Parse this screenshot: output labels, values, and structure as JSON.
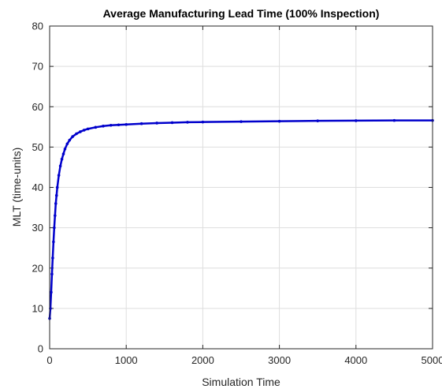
{
  "chart_data": {
    "type": "line",
    "title": "Average Manufacturing Lead Time (100% Inspection)",
    "xlabel": "Simulation Time",
    "ylabel": "MLT (time-units)",
    "xlim": [
      0,
      5000
    ],
    "ylim": [
      0,
      80
    ],
    "xticks": [
      0,
      1000,
      2000,
      3000,
      4000,
      5000
    ],
    "yticks": [
      0,
      10,
      20,
      30,
      40,
      50,
      60,
      70,
      80
    ],
    "grid": true,
    "legend": "none",
    "line_color": "#0000cc",
    "marker": "dot",
    "series": [
      {
        "x": [
          0,
          10,
          20,
          30,
          40,
          50,
          60,
          70,
          80,
          90,
          100,
          120,
          140,
          160,
          180,
          200,
          230,
          260,
          300,
          350,
          400,
          450,
          500,
          600,
          700,
          800,
          900,
          1000,
          1200,
          1400,
          1600,
          1800,
          2000,
          2500,
          3000,
          3500,
          4000,
          4500,
          5000
        ],
        "y": [
          7.5,
          10,
          14,
          18.5,
          22.5,
          26.5,
          30,
          33,
          36,
          38,
          40,
          43,
          45.3,
          47,
          48.3,
          49.5,
          50.8,
          51.7,
          52.6,
          53.3,
          53.8,
          54.2,
          54.5,
          54.9,
          55.2,
          55.4,
          55.5,
          55.6,
          55.8,
          55.95,
          56.05,
          56.15,
          56.2,
          56.3,
          56.4,
          56.5,
          56.55,
          56.6,
          56.6
        ]
      }
    ]
  }
}
